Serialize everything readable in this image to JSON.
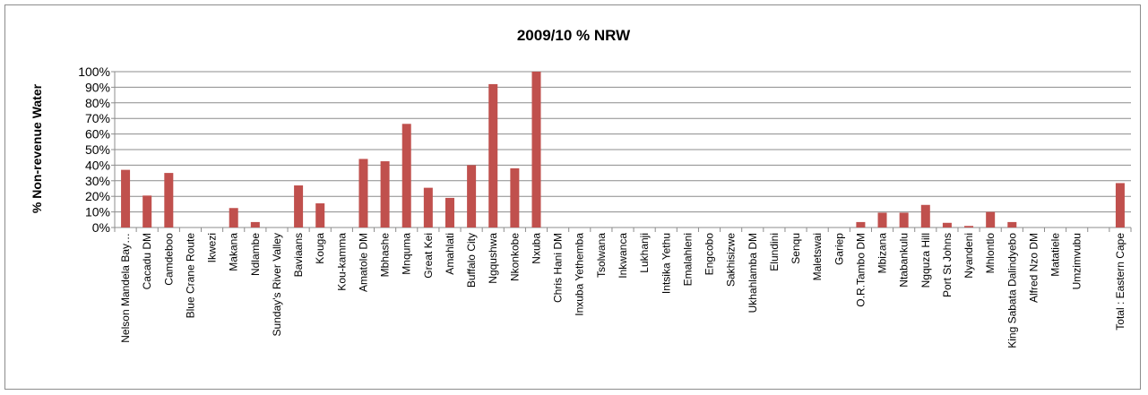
{
  "chart_data": {
    "type": "bar",
    "title": "2009/10 % NRW",
    "xlabel": "",
    "ylabel": "% Non-revenue Water",
    "ylim": [
      0,
      100
    ],
    "yticks": [
      "0%",
      "10%",
      "20%",
      "30%",
      "40%",
      "50%",
      "60%",
      "70%",
      "80%",
      "90%",
      "100%"
    ],
    "grid": true,
    "legend": "none",
    "bar_color": "#c0504d",
    "categories": [
      "Nelson Mandela Bay…",
      "Cacadu DM",
      "Camdeboo",
      "Blue Crane Route",
      "Ikwezi",
      "Makana",
      "Ndlambe",
      "Sunday's River Valley",
      "Baviaans",
      "Kouga",
      "Kou-kamma",
      "Amatole DM",
      "Mbhashe",
      "Mnquma",
      "Great Kei",
      "Amahlati",
      "Buffalo City",
      "Ngqushwa",
      "Nkonkobe",
      "Nxuba",
      "Chris Hani DM",
      "Inxuba Yethemba",
      "Tsolwana",
      "Inkwanca",
      "Lukhanji",
      "Intsika Yethu",
      "Emalahleni",
      "Engcobo",
      "Sakhisizwe",
      "Ukhahlamba DM",
      "Elundini",
      "Senqu",
      "Maletswai",
      "Gariep",
      "O.R.Tambo DM",
      "Mbizana",
      "Ntabankulu",
      "Ngquza Hill",
      "Port St Johns",
      "Nyandeni",
      "Mhlontlo",
      "King Sabata Dalindyebo",
      "Alfred Nzo DM",
      "Matatiele",
      "Umzimvubu",
      "",
      "Total : Eastern Cape"
    ],
    "values": [
      37,
      20.5,
      35,
      0,
      0,
      12.5,
      3.5,
      0,
      27,
      15.5,
      0,
      44,
      42.5,
      66.5,
      25.5,
      19,
      40,
      92,
      38,
      100,
      0,
      0,
      0,
      0,
      0,
      0,
      0,
      0,
      0,
      0,
      0,
      0,
      0,
      0,
      3.5,
      9.5,
      9.5,
      14.5,
      3,
      1,
      10,
      3.5,
      0,
      0,
      0,
      0,
      28.5
    ]
  }
}
